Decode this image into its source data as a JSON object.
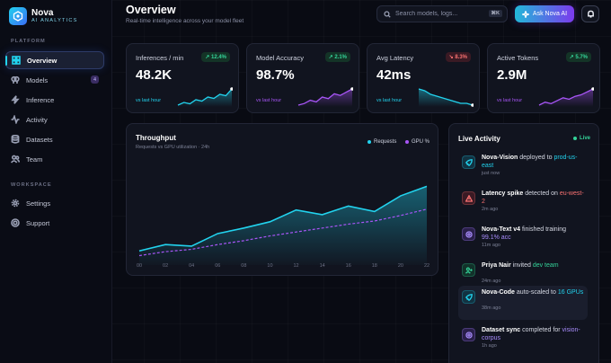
{
  "app": {
    "name": "Nova",
    "subtitle": "AI ANALYTICS"
  },
  "sidebar": {
    "sections": [
      "PLATFORM",
      "WORKSPACE"
    ],
    "items": [
      {
        "label": "Overview",
        "icon": "grid-icon",
        "active": true
      },
      {
        "label": "Models",
        "icon": "brain-icon",
        "badge": "4"
      },
      {
        "label": "Inference",
        "icon": "zap-icon"
      },
      {
        "label": "Activity",
        "icon": "activity-icon"
      },
      {
        "label": "Datasets",
        "icon": "database-icon"
      },
      {
        "label": "Team",
        "icon": "users-icon"
      },
      {
        "label": "Settings",
        "icon": "gear-icon"
      },
      {
        "label": "Support",
        "icon": "help-icon"
      }
    ]
  },
  "header": {
    "title": "Overview",
    "subtitle": "Real-time intelligence across your model fleet",
    "search_placeholder": "Search models, logs...",
    "search_kbd": "⌘K",
    "ask_label": "Ask Nova AI"
  },
  "kpis": [
    {
      "label": "Inferences / min",
      "value": "48.2K",
      "delta": "↗ 12.4%",
      "dir": "up",
      "vs": "vs last hour",
      "color": "#22d3ee",
      "spark": [
        4,
        6,
        5,
        8,
        7,
        10,
        9,
        12,
        11,
        16
      ]
    },
    {
      "label": "Model Accuracy",
      "value": "98.7%",
      "delta": "↗ 2.1%",
      "dir": "up",
      "vs": "vs last hour",
      "color": "#a855f7",
      "spark": [
        4,
        5,
        7,
        6,
        9,
        8,
        11,
        10,
        12,
        14
      ]
    },
    {
      "label": "Avg Latency",
      "value": "42ms",
      "delta": "↘ 8.3%",
      "dir": "dn",
      "vs": "vs last hour",
      "color": "#22d3ee",
      "spark": [
        15,
        14,
        12,
        11,
        10,
        9,
        8,
        7,
        7,
        6
      ]
    },
    {
      "label": "Active Tokens",
      "value": "2.9M",
      "delta": "↗ 5.7%",
      "dir": "up",
      "vs": "vs last hour",
      "color": "#a855f7",
      "spark": [
        4,
        6,
        5,
        7,
        9,
        8,
        10,
        11,
        13,
        15
      ]
    }
  ],
  "throughput": {
    "title": "Throughput",
    "subtitle": "Requests vs GPU utilization · 24h",
    "legend": [
      "Requests",
      "GPU %"
    ]
  },
  "chart_data": {
    "type": "area",
    "x": [
      "00",
      "02",
      "04",
      "06",
      "08",
      "10",
      "12",
      "14",
      "16",
      "18",
      "20",
      "22"
    ],
    "series": [
      {
        "name": "Requests",
        "values": [
          18,
          26,
          24,
          40,
          47,
          55,
          70,
          64,
          75,
          68,
          88,
          100
        ],
        "color": "#22d3ee"
      },
      {
        "name": "GPU %",
        "values": [
          12,
          17,
          20,
          26,
          31,
          37,
          42,
          47,
          52,
          56,
          63,
          71
        ],
        "color": "#a855f7"
      }
    ],
    "ylim": [
      0,
      145
    ]
  },
  "activity": {
    "title": "Live Activity",
    "status": "Live",
    "items": [
      {
        "icon": "rocket-icon",
        "tone": "cy",
        "parts": [
          [
            "b",
            "Nova-Vision"
          ],
          [
            "",
            "deployed to"
          ],
          [
            "cy",
            "prod-us-east"
          ]
        ],
        "time": "just now",
        "hl": false
      },
      {
        "icon": "alert-icon",
        "tone": "rd",
        "parts": [
          [
            "b",
            "Latency spike"
          ],
          [
            "",
            "detected on"
          ],
          [
            "rd",
            "eu-west-2"
          ]
        ],
        "time": "2m ago",
        "hl": false
      },
      {
        "icon": "target-icon",
        "tone": "pu",
        "parts": [
          [
            "b",
            "Nova-Text v4"
          ],
          [
            "",
            "finished training"
          ],
          [
            "pu",
            "99.1% acc"
          ]
        ],
        "time": "11m ago",
        "hl": false
      },
      {
        "icon": "user-plus-icon",
        "tone": "gr",
        "parts": [
          [
            "b",
            "Priya Nair"
          ],
          [
            "",
            "invited"
          ],
          [
            "gr",
            "dev team"
          ]
        ],
        "time": "24m ago",
        "hl": false
      },
      {
        "icon": "rocket-icon",
        "tone": "cy",
        "parts": [
          [
            "b",
            "Nova-Code"
          ],
          [
            "",
            "auto-scaled to"
          ],
          [
            "cy",
            "16 GPUs"
          ]
        ],
        "time": "38m ago",
        "hl": true
      },
      {
        "icon": "target-icon",
        "tone": "pu",
        "parts": [
          [
            "b",
            "Dataset sync"
          ],
          [
            "",
            "completed for"
          ],
          [
            "pu",
            "vision-corpus"
          ]
        ],
        "time": "1h ago",
        "hl": false
      }
    ]
  }
}
